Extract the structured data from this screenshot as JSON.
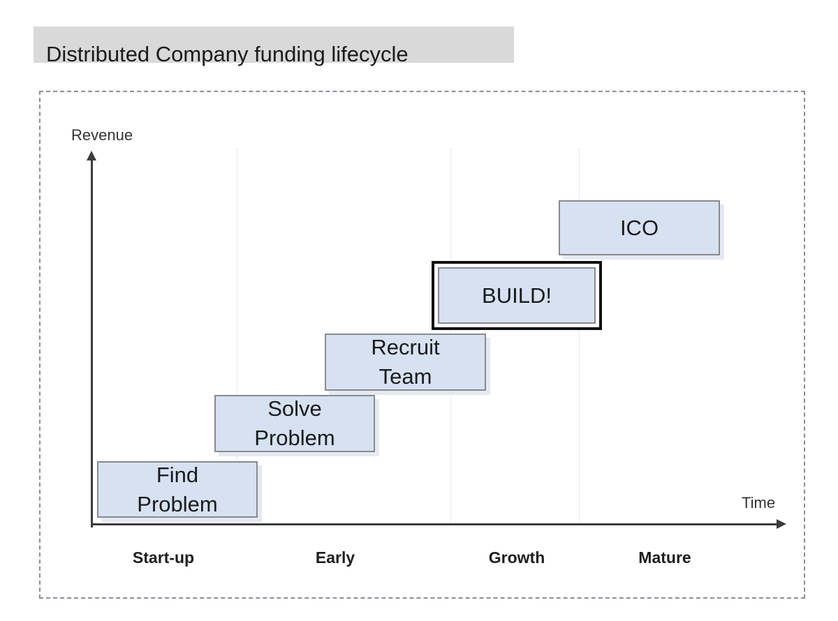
{
  "title": "Distributed Company funding lifecycle",
  "axes": {
    "y_label": "Revenue",
    "x_label": "Time"
  },
  "stages": [
    "Start-up",
    "Early",
    "Growth",
    "Mature"
  ],
  "steps": [
    {
      "line1": "Find",
      "line2": "Problem"
    },
    {
      "line1": "Solve",
      "line2": "Problem"
    },
    {
      "line1": "Recruit",
      "line2": "Team"
    },
    {
      "label": "BUILD!"
    },
    {
      "label": "ICO"
    }
  ],
  "colors": {
    "title_bar": "#d9d9d9",
    "box_fill": "#d6e2f2",
    "box_border": "#8a8a8a",
    "axis": "#3c3c3c",
    "highlight_border": "#111111"
  }
}
